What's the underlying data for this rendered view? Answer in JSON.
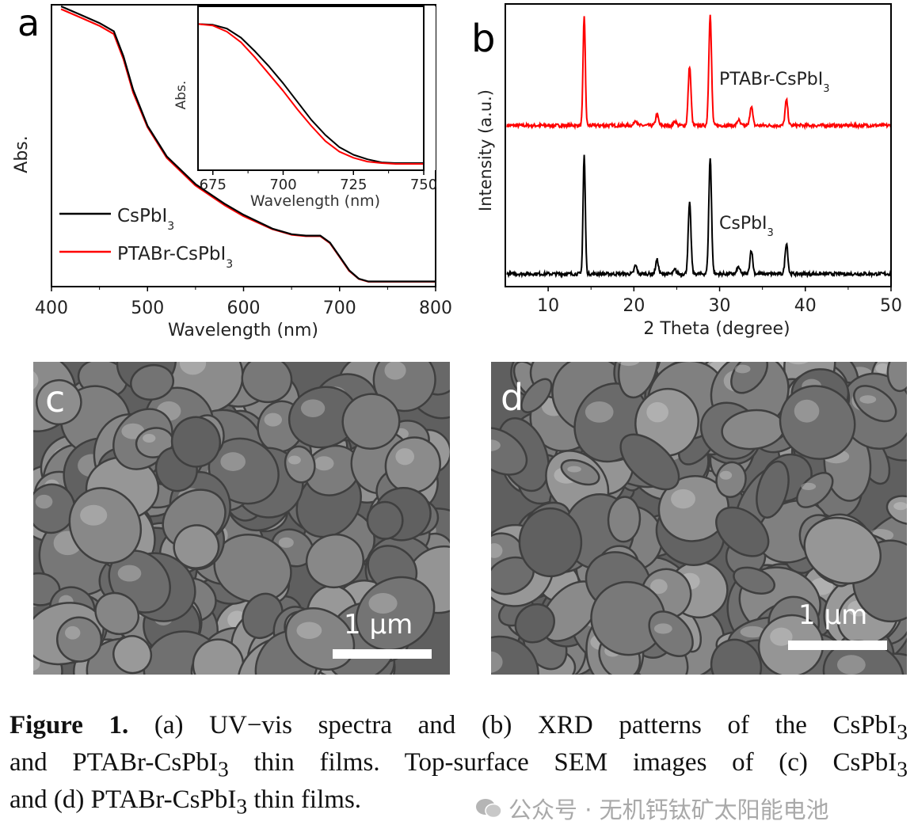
{
  "chart_data": [
    {
      "panel": "a",
      "type": "line",
      "xlabel": "Wavelength (nm)",
      "ylabel": "Abs.",
      "xlim": [
        400,
        800
      ],
      "ylim": [
        0,
        1
      ],
      "xticks": [
        400,
        500,
        600,
        700,
        800
      ],
      "grid": false,
      "legend_placement": "bottom-left",
      "series": [
        {
          "name": "CsPbI3",
          "label_main": "CsPbI",
          "label_sub": "3",
          "color": "#000000",
          "x": [
            410,
            430,
            450,
            465,
            475,
            485,
            500,
            520,
            550,
            580,
            600,
            630,
            650,
            665,
            680,
            690,
            700,
            710,
            720,
            730,
            750,
            800
          ],
          "y": [
            1.0,
            0.97,
            0.94,
            0.91,
            0.82,
            0.7,
            0.57,
            0.46,
            0.36,
            0.29,
            0.25,
            0.2,
            0.18,
            0.175,
            0.175,
            0.15,
            0.1,
            0.05,
            0.02,
            0.01,
            0.01,
            0.01
          ]
        },
        {
          "name": "PTABr-CsPbI3",
          "label_main": "PTABr-CsPbI",
          "label_sub": "3",
          "color": "#ff0000",
          "x": [
            410,
            430,
            450,
            465,
            475,
            485,
            500,
            520,
            550,
            580,
            600,
            630,
            650,
            665,
            680,
            690,
            700,
            710,
            720,
            730,
            750,
            800
          ],
          "y": [
            0.99,
            0.96,
            0.93,
            0.9,
            0.81,
            0.69,
            0.565,
            0.455,
            0.355,
            0.285,
            0.245,
            0.198,
            0.178,
            0.173,
            0.173,
            0.148,
            0.098,
            0.048,
            0.019,
            0.009,
            0.009,
            0.009
          ]
        }
      ],
      "inset": {
        "xlabel": "Wavelength (nm)",
        "ylabel": "Abs.",
        "xlim": [
          670,
          750
        ],
        "ylim": [
          0,
          1
        ],
        "xticks": [
          675,
          700,
          725,
          750
        ],
        "series": [
          {
            "name": "CsPbI3",
            "color": "#000000",
            "x": [
              670,
              675,
              680,
              685,
              690,
              695,
              700,
              705,
              710,
              715,
              720,
              725,
              730,
              735,
              740,
              750
            ],
            "y": [
              0.92,
              0.915,
              0.89,
              0.83,
              0.74,
              0.64,
              0.53,
              0.41,
              0.29,
              0.19,
              0.11,
              0.06,
              0.03,
              0.01,
              0.005,
              0.005
            ]
          },
          {
            "name": "PTABr-CsPbI3",
            "color": "#ff0000",
            "x": [
              670,
              675,
              680,
              685,
              690,
              695,
              700,
              705,
              710,
              715,
              720,
              725,
              730,
              735,
              740,
              750
            ],
            "y": [
              0.92,
              0.91,
              0.87,
              0.8,
              0.7,
              0.59,
              0.48,
              0.36,
              0.25,
              0.15,
              0.08,
              0.04,
              0.015,
              0.005,
              0.0,
              0.0
            ]
          }
        ]
      }
    },
    {
      "panel": "b",
      "type": "line",
      "xlabel": "2 Theta (degree)",
      "ylabel": "Intensity (a.u.)",
      "xlim": [
        5,
        50
      ],
      "ylim": [
        0,
        1
      ],
      "xticks": [
        10,
        20,
        30,
        40,
        50
      ],
      "grid": false,
      "series": [
        {
          "name": "PTABr-CsPbI3",
          "label_main": "PTABr-CsPbI",
          "label_sub": "3",
          "color": "#ff0000",
          "baseline": 0.57,
          "peaks": [
            [
              14.2,
              0.39
            ],
            [
              20.2,
              0.02
            ],
            [
              22.7,
              0.04
            ],
            [
              24.8,
              0.015
            ],
            [
              26.5,
              0.21
            ],
            [
              28.9,
              0.39
            ],
            [
              32.2,
              0.02
            ],
            [
              33.7,
              0.07
            ],
            [
              37.8,
              0.09
            ]
          ]
        },
        {
          "name": "CsPbI3",
          "label_main": "CsPbI",
          "label_sub": "3",
          "color": "#000000",
          "baseline": 0.045,
          "peaks": [
            [
              14.2,
              0.42
            ],
            [
              20.2,
              0.03
            ],
            [
              22.7,
              0.05
            ],
            [
              24.8,
              0.015
            ],
            [
              26.5,
              0.25
            ],
            [
              28.9,
              0.41
            ],
            [
              32.2,
              0.025
            ],
            [
              33.7,
              0.085
            ],
            [
              37.8,
              0.11
            ]
          ]
        }
      ]
    }
  ],
  "panels": {
    "a_label": "a",
    "b_label": "b",
    "c_label": "c",
    "d_label": "d"
  },
  "sem": {
    "c_scale": "1 µm",
    "d_scale": "1 µm"
  },
  "caption": {
    "figure_label": "Figure 1.",
    "part1": " (a) UV−vis spectra and (b) XRD patterns of the CsPbI",
    "sub1": "3",
    "part2": " and PTABr-CsPbI",
    "sub2": "3",
    "part3": " thin films. Top-surface SEM images of (c) CsPbI",
    "sub3": "3",
    "part4": " and (d) PTABr-CsPbI",
    "sub4": "3",
    "part5": " thin films."
  },
  "watermark": "公众号 · 无机钙钛矿太阳能电池"
}
